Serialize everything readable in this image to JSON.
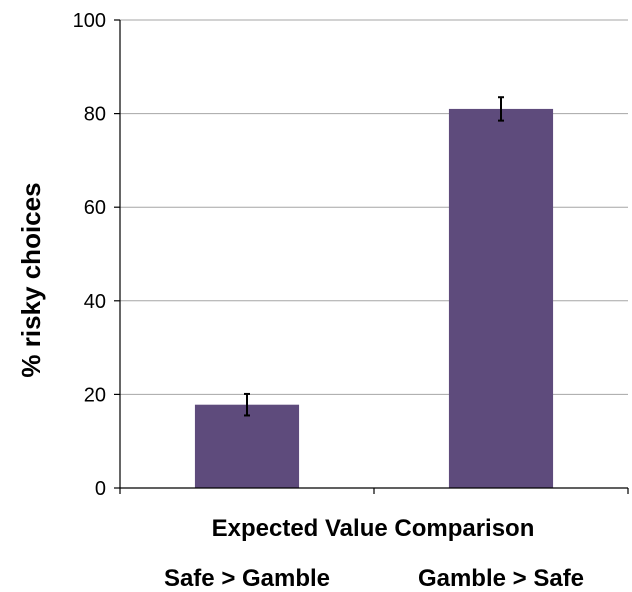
{
  "chart_data": {
    "type": "bar",
    "categories": [
      "Safe > Gamble",
      "Gamble > Safe"
    ],
    "values": [
      17.8,
      81.0
    ],
    "errors": [
      2.3,
      2.5
    ],
    "xlabel": "Expected Value Comparison",
    "ylabel": "% risky choices",
    "ylim": [
      0,
      100
    ],
    "yticks": [
      0,
      20,
      40,
      60,
      80,
      100
    ],
    "grid": true,
    "bar_color": "#5e4b7c",
    "grid_color": "#a6a6a6"
  }
}
